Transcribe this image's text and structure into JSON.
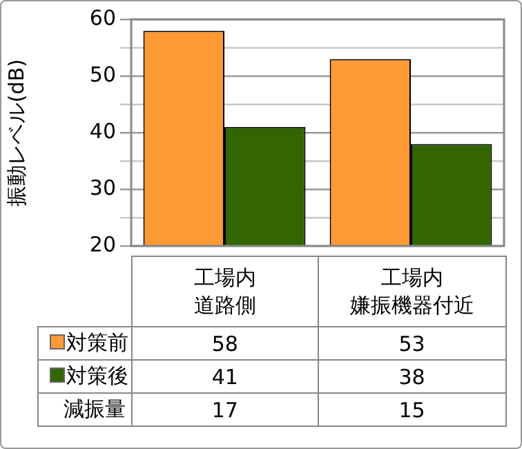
{
  "chart_data": {
    "type": "bar",
    "ylabel": "振動レベル(dB)",
    "categories": [
      "工場内道路側",
      "工場内嫌振機器付近"
    ],
    "series": [
      {
        "name": "対策前",
        "color": "#ff9933",
        "values": [
          58,
          53
        ]
      },
      {
        "name": "対策後",
        "color": "#336600",
        "values": [
          41,
          38
        ]
      }
    ],
    "ylim": [
      20,
      60
    ],
    "yticks": [
      20,
      {
        "value": 25,
        "label": null
      },
      30,
      {
        "value": 35,
        "label": null
      },
      40,
      {
        "value": 45,
        "label": null
      },
      50,
      {
        "value": 55,
        "label": null
      },
      60
    ],
    "grid": "y",
    "legend": "bottom",
    "data_labels": true,
    "annotations": [
      "減振量",
      "17",
      "15"
    ]
  }
}
